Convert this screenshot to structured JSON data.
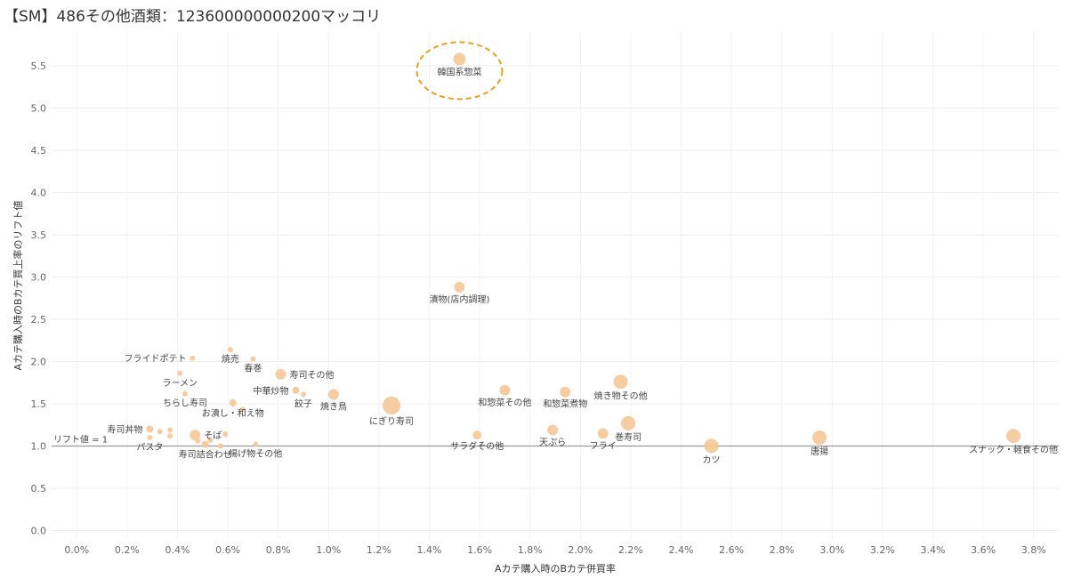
{
  "chart_data": {
    "type": "scatter",
    "title": "【SM】486その他酒類：123600000000200マッコリ",
    "xlabel": "Aカテ購入時のBカテ併買率",
    "ylabel": "Aカテ購入時のBカテ買上率のリフト値",
    "xlim": [
      -0.1,
      3.9
    ],
    "ylim": [
      -0.1,
      5.9
    ],
    "x_ticks": [
      0.0,
      0.2,
      0.4,
      0.6,
      0.8,
      1.0,
      1.2,
      1.4,
      1.6,
      1.8,
      2.0,
      2.2,
      2.4,
      2.6,
      2.8,
      3.0,
      3.2,
      3.4,
      3.6,
      3.8
    ],
    "x_tick_labels": [
      "0.0%",
      "0.2%",
      "0.4%",
      "0.6%",
      "0.8%",
      "1.0%",
      "1.2%",
      "1.4%",
      "1.6%",
      "1.8%",
      "2.0%",
      "2.2%",
      "2.4%",
      "2.6%",
      "2.8%",
      "3.0%",
      "3.2%",
      "3.4%",
      "3.6%",
      "3.8%"
    ],
    "y_ticks": [
      0.0,
      0.5,
      1.0,
      1.5,
      2.0,
      2.5,
      3.0,
      3.5,
      4.0,
      4.5,
      5.0,
      5.5
    ],
    "y_tick_labels": [
      "0.0",
      "0.5",
      "1.0",
      "1.5",
      "2.0",
      "2.5",
      "3.0",
      "3.5",
      "4.0",
      "4.5",
      "5.0",
      "5.5"
    ],
    "reference_line": {
      "y": 1.0,
      "label": "リフト値 = 1"
    },
    "highlight": "韓国系惣菜",
    "point_color": "#f5c797",
    "reference_line_color": "#999999",
    "highlight_color": "#e8a020",
    "points": [
      {
        "label": "韓国系惣菜",
        "x": 1.52,
        "y": 5.58,
        "size": 7,
        "label_pos": "below"
      },
      {
        "label": "漬物(店内調理)",
        "x": 1.52,
        "y": 2.88,
        "size": 6,
        "label_pos": "below"
      },
      {
        "label": "フライドポテト",
        "x": 0.46,
        "y": 2.04,
        "size": 3,
        "label_pos": "left"
      },
      {
        "label": "焼売",
        "x": 0.61,
        "y": 2.14,
        "size": 3,
        "label_pos": "below"
      },
      {
        "label": "春巻",
        "x": 0.7,
        "y": 2.03,
        "size": 3,
        "label_pos": "below"
      },
      {
        "label": "寿司その他",
        "x": 0.81,
        "y": 1.85,
        "size": 6,
        "label_pos": "right"
      },
      {
        "label": "ラーメン",
        "x": 0.41,
        "y": 1.86,
        "size": 3,
        "label_pos": "below"
      },
      {
        "label": "中華炒物",
        "x": 0.87,
        "y": 1.66,
        "size": 4,
        "label_pos": "left"
      },
      {
        "label": "餃子",
        "x": 0.9,
        "y": 1.61,
        "size": 3,
        "label_pos": "below"
      },
      {
        "label": "焼き鳥",
        "x": 1.02,
        "y": 1.61,
        "size": 6,
        "label_pos": "below"
      },
      {
        "label": "ちらし寿司",
        "x": 0.43,
        "y": 1.62,
        "size": 3,
        "label_pos": "below"
      },
      {
        "label": "お漬し・和え物",
        "x": 0.62,
        "y": 1.51,
        "size": 4,
        "label_pos": "below"
      },
      {
        "label": "",
        "x": 0.66,
        "y": 1.43,
        "size": 3,
        "label_pos": "none"
      },
      {
        "label": "にぎり寿司",
        "x": 1.25,
        "y": 1.48,
        "size": 10,
        "label_pos": "below"
      },
      {
        "label": "和惣菜その他",
        "x": 1.7,
        "y": 1.66,
        "size": 6,
        "label_pos": "below"
      },
      {
        "label": "和惣菜煮物",
        "x": 1.94,
        "y": 1.64,
        "size": 6,
        "label_pos": "below"
      },
      {
        "label": "焼き物その他",
        "x": 2.16,
        "y": 1.76,
        "size": 8,
        "label_pos": "below"
      },
      {
        "label": "寿司丼物",
        "x": 0.29,
        "y": 1.2,
        "size": 4,
        "label_pos": "left"
      },
      {
        "label": "",
        "x": 0.33,
        "y": 1.17,
        "size": 3,
        "label_pos": "none"
      },
      {
        "label": "",
        "x": 0.37,
        "y": 1.19,
        "size": 3,
        "label_pos": "none"
      },
      {
        "label": "",
        "x": 0.37,
        "y": 1.12,
        "size": 3,
        "label_pos": "none"
      },
      {
        "label": "そば",
        "x": 0.47,
        "y": 1.13,
        "size": 6,
        "label_pos": "right"
      },
      {
        "label": "",
        "x": 0.53,
        "y": 1.07,
        "size": 3,
        "label_pos": "none"
      },
      {
        "label": "",
        "x": 0.59,
        "y": 1.14,
        "size": 3,
        "label_pos": "none"
      },
      {
        "label": "",
        "x": 0.48,
        "y": 1.06,
        "size": 3,
        "label_pos": "none"
      },
      {
        "label": "",
        "x": 0.51,
        "y": 1.02,
        "size": 4,
        "label_pos": "none"
      },
      {
        "label": "パスタ",
        "x": 0.29,
        "y": 1.1,
        "size": 3,
        "label_pos": "below"
      },
      {
        "label": "寿司詰合わせ",
        "x": 0.51,
        "y": 1.01,
        "size": 3,
        "label_pos": "below"
      },
      {
        "label": "",
        "x": 0.57,
        "y": 1.0,
        "size": 3,
        "label_pos": "none"
      },
      {
        "label": "揚げ物その他",
        "x": 0.71,
        "y": 1.02,
        "size": 3,
        "label_pos": "below"
      },
      {
        "label": "サラダその他",
        "x": 1.59,
        "y": 1.13,
        "size": 5,
        "label_pos": "below"
      },
      {
        "label": "天ぷら",
        "x": 1.89,
        "y": 1.19,
        "size": 6,
        "label_pos": "below"
      },
      {
        "label": "フライ",
        "x": 2.09,
        "y": 1.15,
        "size": 6,
        "label_pos": "below"
      },
      {
        "label": "巻寿司",
        "x": 2.19,
        "y": 1.27,
        "size": 8,
        "label_pos": "below"
      },
      {
        "label": "カツ",
        "x": 2.52,
        "y": 1.0,
        "size": 8,
        "label_pos": "below"
      },
      {
        "label": "唐揚",
        "x": 2.95,
        "y": 1.1,
        "size": 8,
        "label_pos": "below"
      },
      {
        "label": "スナック・軽食その他",
        "x": 3.72,
        "y": 1.12,
        "size": 8,
        "label_pos": "below"
      }
    ]
  }
}
